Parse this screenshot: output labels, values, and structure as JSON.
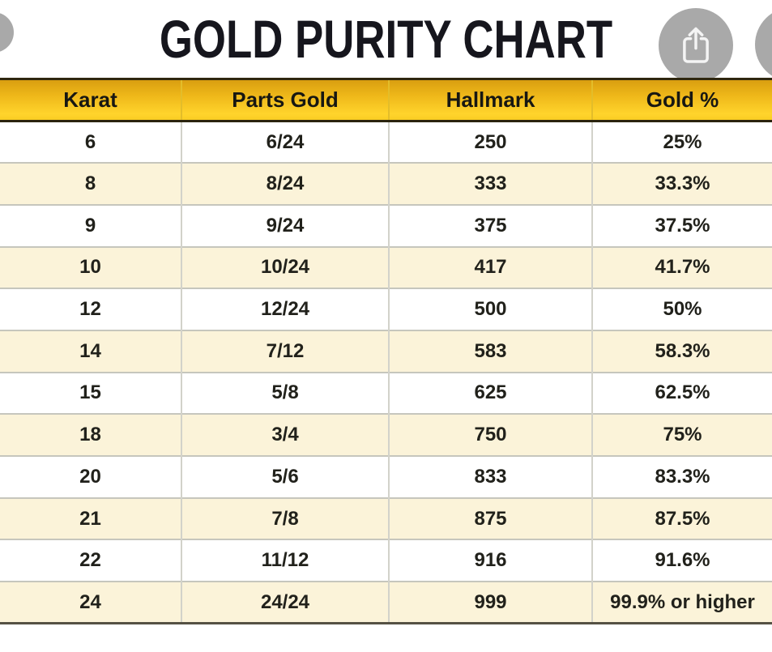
{
  "title": "GOLD PURITY CHART",
  "toolbar": {
    "share_icon": "share-export-icon",
    "left_partial_button": "partially-visible-round-button",
    "right_partial_button": "partially-visible-round-button"
  },
  "chart_data": {
    "type": "table",
    "title": "GOLD PURITY CHART",
    "columns": [
      "Karat",
      "Parts Gold",
      "Hallmark",
      "Gold %"
    ],
    "rows": [
      [
        "6",
        "6/24",
        "250",
        "25%"
      ],
      [
        "8",
        "8/24",
        "333",
        "33.3%"
      ],
      [
        "9",
        "9/24",
        "375",
        "37.5%"
      ],
      [
        "10",
        "10/24",
        "417",
        "41.7%"
      ],
      [
        "12",
        "12/24",
        "500",
        "50%"
      ],
      [
        "14",
        "7/12",
        "583",
        "58.3%"
      ],
      [
        "15",
        "5/8",
        "625",
        "62.5%"
      ],
      [
        "18",
        "3/4",
        "750",
        "75%"
      ],
      [
        "20",
        "5/6",
        "833",
        "83.3%"
      ],
      [
        "21",
        "7/8",
        "875",
        "87.5%"
      ],
      [
        "22",
        "11/12",
        "916",
        "91.6%"
      ],
      [
        "24",
        "24/24",
        "999",
        "99.9% or higher"
      ]
    ],
    "row_striping": "alternating white and cream, first data row white"
  },
  "colors": {
    "header_gold_top": "#D89D10",
    "header_gold_bottom": "#FFD42C",
    "row_cream": "#FBF3D9",
    "row_white": "#FFFFFF",
    "title_text": "#16161D",
    "circle_gray": "#A9A9A9",
    "dark_border": "#2B240E"
  }
}
